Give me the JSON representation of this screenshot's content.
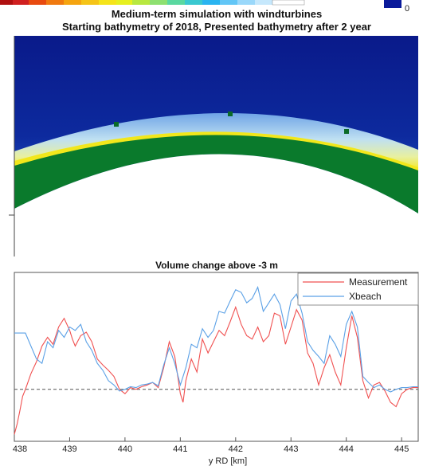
{
  "figure": {
    "colorbar_tick": "0",
    "colors": {
      "deep_water": "#0b1a8a",
      "mid_water": "#1f3fb8",
      "shallow_water": "#7fb2ee",
      "beach": "#f2e71b",
      "land": "#0a7a2c",
      "background": "#ffffff",
      "measurement": "#f05050",
      "xbeach": "#5aa0e6",
      "zero_line": "#555555"
    }
  },
  "chart_data": [
    {
      "type": "heatmap",
      "title": "Medium-term simulation with windturbines",
      "subtitle": "Starting bathymetry of 2018, Presented bathymetry after 2 year",
      "colorbar_label": "0",
      "markers": [
        "windturbine",
        "windturbine",
        "windturbine"
      ]
    },
    {
      "type": "line",
      "title": "Volume change above -3 m",
      "xlabel": "y RD [km]",
      "ylabel": "",
      "xlim": [
        438,
        445.3
      ],
      "ylim": [
        -60,
        135
      ],
      "zero_line": 0,
      "x_ticks": [
        "438",
        "439",
        "440",
        "441",
        "442",
        "443",
        "444",
        "445"
      ],
      "legend_position": "top-right",
      "series": [
        {
          "name": "Measurement",
          "color": "#f05050",
          "x": [
            438.0,
            438.05,
            438.1,
            438.15,
            438.2,
            438.3,
            438.4,
            438.5,
            438.6,
            438.7,
            438.8,
            438.9,
            439.0,
            439.05,
            439.1,
            439.2,
            439.3,
            439.4,
            439.5,
            439.6,
            439.7,
            439.8,
            439.9,
            440.0,
            440.1,
            440.2,
            440.3,
            440.4,
            440.5,
            440.6,
            440.7,
            440.8,
            440.9,
            441.0,
            441.05,
            441.1,
            441.2,
            441.3,
            441.4,
            441.5,
            441.6,
            441.7,
            441.8,
            441.9,
            442.0,
            442.1,
            442.2,
            442.3,
            442.4,
            442.5,
            442.6,
            442.7,
            442.8,
            442.9,
            443.0,
            443.1,
            443.2,
            443.3,
            443.4,
            443.5,
            443.6,
            443.7,
            443.8,
            443.9,
            444.0,
            444.1,
            444.2,
            444.3,
            444.4,
            444.5,
            444.6,
            444.7,
            444.8,
            444.9,
            445.0,
            445.1,
            445.2,
            445.3
          ],
          "y": [
            -52,
            -40,
            -25,
            -8,
            0,
            18,
            32,
            50,
            60,
            52,
            72,
            82,
            68,
            58,
            50,
            62,
            66,
            55,
            35,
            28,
            22,
            15,
            0,
            -5,
            2,
            0,
            3,
            5,
            8,
            2,
            25,
            55,
            38,
            -5,
            -15,
            10,
            35,
            20,
            58,
            42,
            55,
            68,
            62,
            78,
            95,
            75,
            62,
            58,
            72,
            55,
            62,
            88,
            85,
            52,
            72,
            92,
            80,
            42,
            30,
            5,
            25,
            40,
            20,
            5,
            48,
            85,
            60,
            10,
            -10,
            5,
            8,
            -2,
            -15,
            -20,
            -5,
            0,
            2,
            2
          ]
        },
        {
          "name": "Xbeach",
          "color": "#5aa0e6",
          "x": [
            438.0,
            438.2,
            438.3,
            438.4,
            438.5,
            438.6,
            438.7,
            438.8,
            438.9,
            439.0,
            439.1,
            439.2,
            439.3,
            439.4,
            439.5,
            439.6,
            439.7,
            439.8,
            439.9,
            440.0,
            440.1,
            440.2,
            440.3,
            440.4,
            440.5,
            440.6,
            440.7,
            440.8,
            440.9,
            441.0,
            441.1,
            441.2,
            441.3,
            441.4,
            441.5,
            441.6,
            441.7,
            441.8,
            441.9,
            442.0,
            442.1,
            442.2,
            442.3,
            442.4,
            442.5,
            442.6,
            442.7,
            442.8,
            442.9,
            443.0,
            443.1,
            443.2,
            443.3,
            443.4,
            443.5,
            443.6,
            443.7,
            443.8,
            443.9,
            444.0,
            444.1,
            444.2,
            444.3,
            444.4,
            444.5,
            444.6,
            444.7,
            444.8,
            444.9,
            445.0,
            445.1,
            445.2,
            445.3
          ],
          "y": [
            65,
            65,
            50,
            35,
            30,
            55,
            48,
            68,
            60,
            72,
            68,
            75,
            55,
            45,
            30,
            22,
            10,
            5,
            -2,
            0,
            3,
            2,
            5,
            6,
            8,
            4,
            28,
            48,
            30,
            5,
            25,
            52,
            48,
            70,
            60,
            68,
            90,
            88,
            102,
            115,
            112,
            100,
            105,
            118,
            90,
            100,
            110,
            98,
            70,
            102,
            110,
            88,
            55,
            45,
            38,
            30,
            62,
            52,
            38,
            75,
            90,
            72,
            15,
            8,
            2,
            5,
            0,
            -3,
            0,
            2,
            2,
            3,
            3
          ]
        }
      ]
    }
  ]
}
